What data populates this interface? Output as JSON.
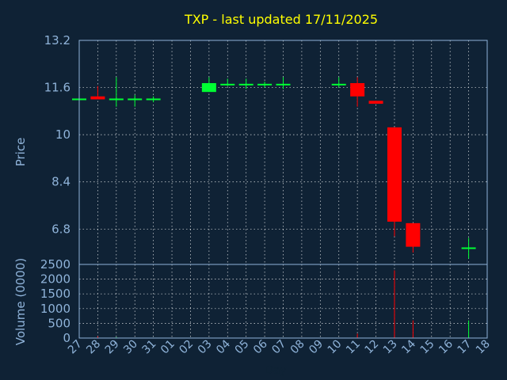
{
  "chart_data": {
    "type": "candlestick",
    "title": "TXP - last updated 17/11/2025",
    "xlabel": "Day",
    "ylabel": "Price",
    "volume_label": "Volume (0000)",
    "categories": [
      "27",
      "28",
      "29",
      "30",
      "31",
      "01",
      "02",
      "03",
      "04",
      "05",
      "06",
      "07",
      "08",
      "09",
      "10",
      "11",
      "12",
      "13",
      "14",
      "15",
      "16",
      "17",
      "18"
    ],
    "price_ylim": [
      5.6,
      13.2
    ],
    "price_ticks": [
      "13.2",
      "11.6",
      "10",
      "8.4",
      "6.8"
    ],
    "volume_ylim": [
      0,
      2500
    ],
    "volume_ticks": [
      "2500",
      "2000",
      "1500",
      "1000",
      "500",
      "0"
    ],
    "grid": true,
    "colors": {
      "up": "#00ff33",
      "down": "#ff0000",
      "flat": "#00ff33"
    },
    "candles": [
      {
        "day": "27",
        "open": 11.2,
        "high": 11.2,
        "low": 11.2,
        "close": 11.2
      },
      {
        "day": "28",
        "open": 11.3,
        "high": 11.65,
        "low": 11.25,
        "close": 11.2
      },
      {
        "day": "29",
        "open": 11.2,
        "high": 11.95,
        "low": 10.95,
        "close": 11.2
      },
      {
        "day": "30",
        "open": 11.2,
        "high": 11.35,
        "low": 10.95,
        "close": 11.2
      },
      {
        "day": "31",
        "open": 11.2,
        "high": 11.3,
        "low": 11.1,
        "close": 11.2
      },
      {
        "day": "03",
        "open": 11.45,
        "high": 11.95,
        "low": 11.45,
        "close": 11.75
      },
      {
        "day": "04",
        "open": 11.7,
        "high": 11.9,
        "low": 11.65,
        "close": 11.7
      },
      {
        "day": "05",
        "open": 11.7,
        "high": 11.9,
        "low": 11.55,
        "close": 11.7
      },
      {
        "day": "06",
        "open": 11.7,
        "high": 11.8,
        "low": 11.6,
        "close": 11.7
      },
      {
        "day": "07",
        "open": 11.7,
        "high": 11.95,
        "low": 11.55,
        "close": 11.7
      },
      {
        "day": "10",
        "open": 11.7,
        "high": 11.95,
        "low": 11.6,
        "close": 11.7
      },
      {
        "day": "11",
        "open": 11.75,
        "high": 11.95,
        "low": 10.95,
        "close": 11.3
      },
      {
        "day": "12",
        "open": 11.15,
        "high": 11.15,
        "low": 11.05,
        "close": 11.05
      },
      {
        "day": "13",
        "open": 10.25,
        "high": 10.25,
        "low": 6.55,
        "close": 7.05
      },
      {
        "day": "14",
        "open": 7.0,
        "high": 7.0,
        "low": 6.0,
        "close": 6.2
      },
      {
        "day": "17",
        "open": 6.15,
        "high": 6.5,
        "low": 5.8,
        "close": 6.15
      }
    ],
    "volumes": [
      {
        "day": "28",
        "value": 60,
        "dir": "down"
      },
      {
        "day": "29",
        "value": 30,
        "dir": "flat"
      },
      {
        "day": "11",
        "value": 150,
        "dir": "down"
      },
      {
        "day": "13",
        "value": 2300,
        "dir": "down"
      },
      {
        "day": "14",
        "value": 600,
        "dir": "down"
      },
      {
        "day": "17",
        "value": 600,
        "dir": "up"
      }
    ]
  }
}
